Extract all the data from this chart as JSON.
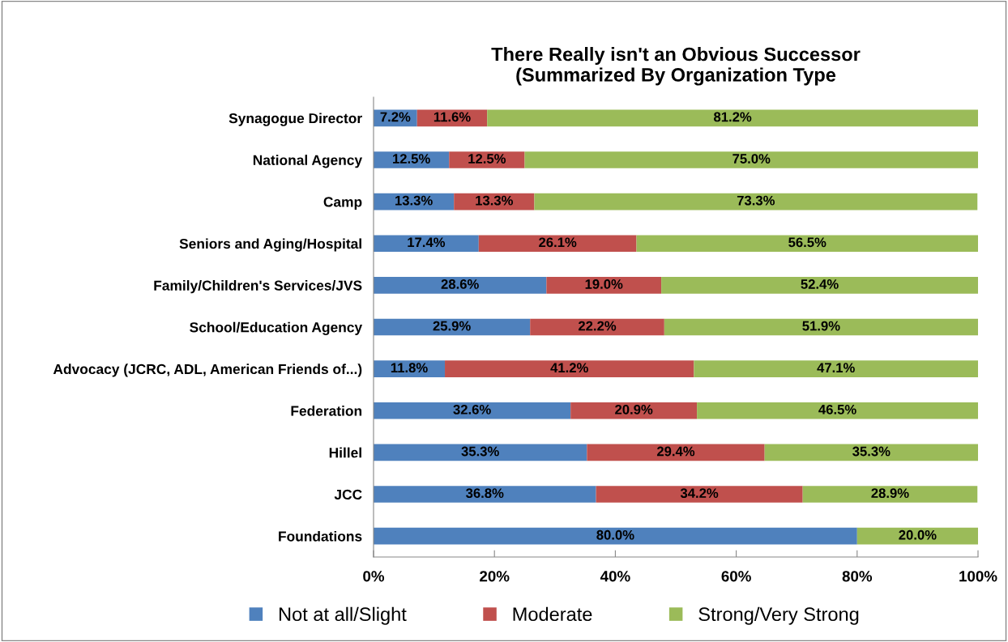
{
  "chart_data": {
    "type": "bar",
    "orientation": "horizontal",
    "stacked": true,
    "title": "There Really isn't an Obvious Successor\n(Summarized By Organization Type",
    "categories": [
      "Synagogue Director",
      "National Agency",
      "Camp",
      "Seniors and Aging/Hospital",
      "Family/Children's Services/JVS",
      "School/Education Agency",
      "Advocacy (JCRC, ADL, American Friends of...)",
      "Federation",
      "Hillel",
      "JCC",
      "Foundations"
    ],
    "series": [
      {
        "name": "Not at all/Slight",
        "color": "#4f81bd",
        "values": [
          7.2,
          12.5,
          13.3,
          17.4,
          28.6,
          25.9,
          11.8,
          32.6,
          35.3,
          36.8,
          80.0
        ],
        "value_labels": [
          "7.2%",
          "12.5%",
          "13.3%",
          "17.4%",
          "28.6%",
          "25.9%",
          "11.8%",
          "32.6%",
          "35.3%",
          "36.8%",
          "80.0%"
        ]
      },
      {
        "name": "Moderate",
        "color": "#c0504d",
        "values": [
          11.6,
          12.5,
          13.3,
          26.1,
          19.0,
          22.2,
          41.2,
          20.9,
          29.4,
          34.2,
          0
        ],
        "value_labels": [
          "11.6%",
          "12.5%",
          "13.3%",
          "26.1%",
          "19.0%",
          "22.2%",
          "41.2%",
          "20.9%",
          "29.4%",
          "34.2%",
          null
        ]
      },
      {
        "name": "Strong/Very Strong",
        "color": "#9bbb59",
        "values": [
          81.2,
          75.0,
          73.3,
          56.5,
          52.4,
          51.9,
          47.1,
          46.5,
          35.3,
          28.9,
          20.0
        ],
        "value_labels": [
          "81.2%",
          "75.0%",
          "73.3%",
          "56.5%",
          "52.4%",
          "51.9%",
          "47.1%",
          "46.5%",
          "35.3%",
          "28.9%",
          "20.0%"
        ]
      }
    ],
    "xlim": [
      0,
      100
    ],
    "xticks": [
      {
        "value": 0,
        "label": "0%"
      },
      {
        "value": 20,
        "label": "20%"
      },
      {
        "value": 40,
        "label": "40%"
      },
      {
        "value": 60,
        "label": "60%"
      },
      {
        "value": 80,
        "label": "80%"
      },
      {
        "value": 100,
        "label": "100%"
      }
    ],
    "grid": false,
    "legend": "bottom"
  }
}
